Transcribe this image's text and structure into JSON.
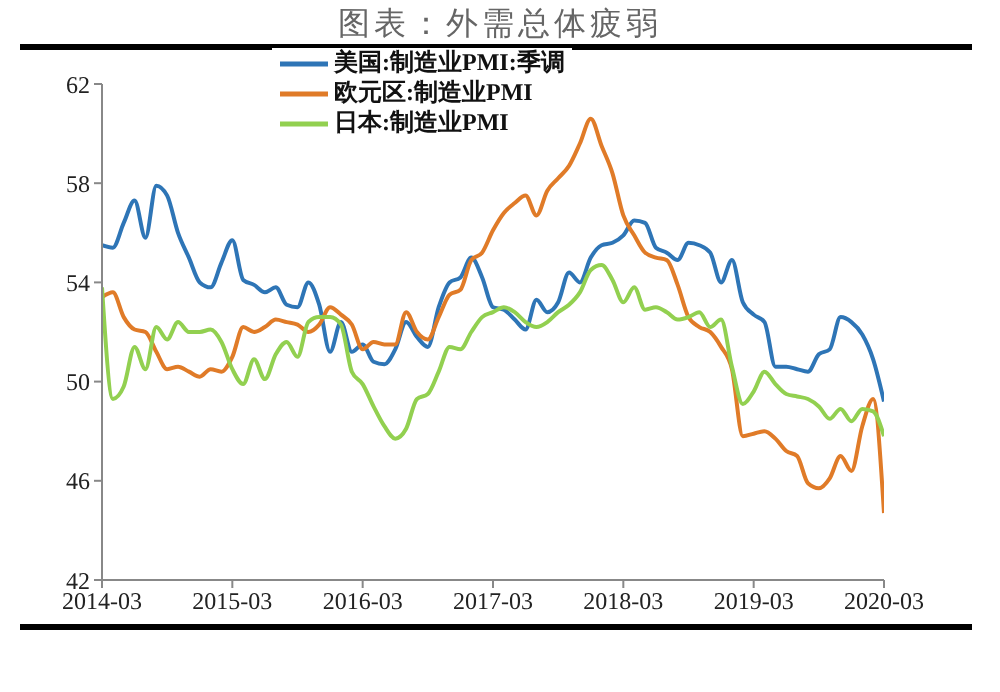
{
  "chart_data": {
    "type": "line",
    "title": "图表：外需总体疲弱",
    "x": [
      "2014-03",
      "2014-04",
      "2014-05",
      "2014-06",
      "2014-07",
      "2014-08",
      "2014-09",
      "2014-10",
      "2014-11",
      "2014-12",
      "2015-01",
      "2015-02",
      "2015-03",
      "2015-04",
      "2015-05",
      "2015-06",
      "2015-07",
      "2015-08",
      "2015-09",
      "2015-10",
      "2015-11",
      "2015-12",
      "2016-01",
      "2016-02",
      "2016-03",
      "2016-04",
      "2016-05",
      "2016-06",
      "2016-07",
      "2016-08",
      "2016-09",
      "2016-10",
      "2016-11",
      "2016-12",
      "2017-01",
      "2017-02",
      "2017-03",
      "2017-04",
      "2017-05",
      "2017-06",
      "2017-07",
      "2017-08",
      "2017-09",
      "2017-10",
      "2017-11",
      "2017-12",
      "2018-01",
      "2018-02",
      "2018-03",
      "2018-04",
      "2018-05",
      "2018-06",
      "2018-07",
      "2018-08",
      "2018-09",
      "2018-10",
      "2018-11",
      "2018-12",
      "2019-01",
      "2019-02",
      "2019-03",
      "2019-04",
      "2019-05",
      "2019-06",
      "2019-07",
      "2019-08",
      "2019-09",
      "2019-10",
      "2019-11",
      "2019-12",
      "2020-01",
      "2020-02",
      "2020-03"
    ],
    "series": [
      {
        "name": "美国:制造业PMI:季调",
        "color": "#2e75b6",
        "values": [
          55.5,
          55.4,
          56.4,
          57.3,
          55.8,
          57.9,
          57.5,
          56.0,
          55.0,
          54.0,
          53.8,
          54.8,
          55.7,
          54.1,
          53.9,
          53.6,
          53.8,
          53.1,
          53.0,
          54.0,
          53.1,
          51.2,
          52.4,
          51.2,
          51.5,
          50.8,
          50.7,
          51.3,
          52.4,
          51.8,
          51.4,
          53.0,
          54.0,
          54.2,
          55.0,
          54.2,
          53.0,
          52.9,
          52.5,
          52.1,
          53.3,
          52.8,
          53.2,
          54.4,
          54.0,
          55.0,
          55.5,
          55.6,
          55.9,
          56.5,
          56.4,
          55.4,
          55.2,
          54.9,
          55.6,
          55.5,
          55.2,
          54.0,
          54.9,
          53.2,
          52.7,
          52.4,
          50.6,
          50.6,
          50.5,
          50.4,
          51.1,
          51.3,
          52.6,
          52.4,
          51.9,
          50.9,
          49.2
        ]
      },
      {
        "name": "欧元区:制造业PMI",
        "color": "#e07b28",
        "values": [
          53.4,
          53.6,
          52.6,
          52.1,
          52.0,
          51.2,
          50.5,
          50.6,
          50.4,
          50.2,
          50.5,
          50.4,
          51.0,
          52.2,
          52.0,
          52.2,
          52.5,
          52.4,
          52.3,
          52.0,
          52.3,
          53.0,
          52.7,
          52.3,
          51.3,
          51.6,
          51.5,
          51.5,
          52.8,
          52.0,
          51.7,
          52.6,
          53.5,
          53.7,
          54.9,
          55.2,
          56.1,
          56.8,
          57.2,
          57.5,
          56.7,
          57.7,
          58.2,
          58.7,
          59.6,
          60.6,
          59.5,
          58.4,
          56.7,
          55.9,
          55.2,
          55.0,
          54.9,
          53.9,
          52.6,
          52.2,
          52.0,
          51.4,
          50.5,
          47.8,
          47.9,
          48.0,
          47.7,
          47.2,
          47.0,
          45.9,
          45.7,
          46.1,
          47.0,
          46.4,
          48.2,
          49.3,
          44.7
        ]
      },
      {
        "name": "日本:制造业PMI",
        "color": "#92d050",
        "values": [
          53.8,
          49.3,
          49.8,
          51.4,
          50.5,
          52.2,
          51.7,
          52.4,
          52.0,
          52.0,
          52.1,
          51.6,
          50.5,
          49.9,
          50.9,
          50.1,
          51.1,
          51.6,
          51.0,
          52.4,
          52.6,
          52.6,
          52.3,
          50.4,
          49.9,
          49.0,
          48.2,
          47.7,
          48.1,
          49.3,
          49.5,
          50.4,
          51.4,
          51.3,
          52.0,
          52.6,
          52.8,
          53.0,
          52.8,
          52.4,
          52.2,
          52.4,
          52.8,
          53.1,
          53.6,
          54.5,
          54.7,
          54.1,
          53.2,
          53.8,
          52.9,
          53.0,
          52.8,
          52.5,
          52.6,
          52.8,
          52.2,
          52.5,
          50.6,
          49.1,
          49.6,
          50.4,
          49.9,
          49.5,
          49.4,
          49.3,
          49.0,
          48.5,
          48.9,
          48.4,
          48.9,
          48.8,
          47.8
        ]
      }
    ],
    "xlim": [
      "2014-03",
      "2020-03"
    ],
    "xticks": [
      "2014-03",
      "2015-03",
      "2016-03",
      "2017-03",
      "2018-03",
      "2019-03",
      "2020-03"
    ],
    "ylim": [
      42,
      62
    ],
    "yticks": [
      42,
      46,
      50,
      54,
      58,
      62
    ],
    "grid": false,
    "legend": "top left",
    "marker": "none",
    "line_style": "solid"
  }
}
